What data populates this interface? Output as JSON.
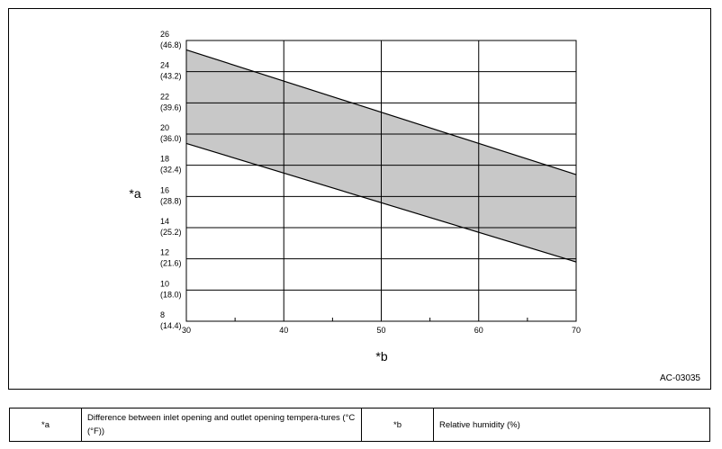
{
  "chart_data": {
    "type": "area",
    "x_ticks": [
      30,
      40,
      50,
      60,
      70
    ],
    "xlim": [
      30,
      70
    ],
    "y_ticks": [
      {
        "value": 8,
        "label": "8",
        "sub": "(14.4)"
      },
      {
        "value": 10,
        "label": "10",
        "sub": "(18.0)"
      },
      {
        "value": 12,
        "label": "12",
        "sub": "(21.6)"
      },
      {
        "value": 14,
        "label": "14",
        "sub": "(25.2)"
      },
      {
        "value": 16,
        "label": "16",
        "sub": "(28.8)"
      },
      {
        "value": 18,
        "label": "18",
        "sub": "(32.4)"
      },
      {
        "value": 20,
        "label": "20",
        "sub": "(36.0)"
      },
      {
        "value": 22,
        "label": "22",
        "sub": "(39.6)"
      },
      {
        "value": 24,
        "label": "24",
        "sub": "(43.2)"
      },
      {
        "value": 26,
        "label": "26",
        "sub": "(46.8)"
      }
    ],
    "ylim": [
      8,
      26
    ],
    "grid": true,
    "xlabel": "*b",
    "ylabel": "*a",
    "band": {
      "upper": [
        {
          "x": 30,
          "y": 25.4
        },
        {
          "x": 70,
          "y": 17.4
        }
      ],
      "lower": [
        {
          "x": 30,
          "y": 19.4
        },
        {
          "x": 70,
          "y": 11.8
        }
      ],
      "fill": "#c8c8c8"
    }
  },
  "figure_id": "AC-03035",
  "legend": {
    "a_key": "*a",
    "a_text": "Difference between inlet opening and outlet opening tempera-tures (°C (°F))",
    "b_key": "*b",
    "b_text": "Relative humidity (%)"
  }
}
